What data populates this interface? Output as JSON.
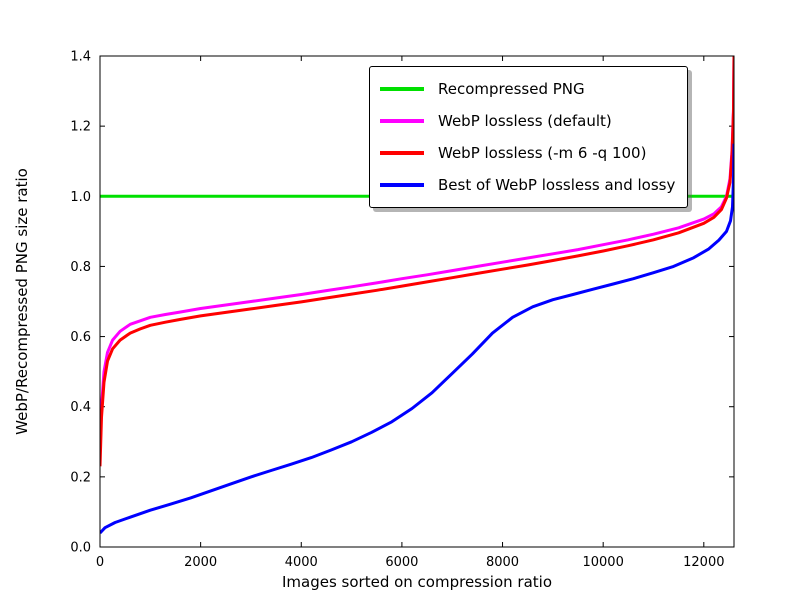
{
  "figure": {
    "background": "#ffffff",
    "axes_edge_color": "#000000"
  },
  "chart_data": {
    "type": "line",
    "title": "",
    "xlabel": "Images sorted on compression ratio",
    "ylabel": "WebP/Recompressed PNG size ratio",
    "xlim": [
      0,
      12600
    ],
    "ylim": [
      0.0,
      1.4
    ],
    "grid": false,
    "legend_position": "upper center",
    "xtick_values": [
      0,
      2000,
      4000,
      6000,
      8000,
      10000,
      12000
    ],
    "xtick_labels": [
      "0",
      "2000",
      "4000",
      "6000",
      "8000",
      "10000",
      "12000"
    ],
    "ytick_values": [
      0.0,
      0.2,
      0.4,
      0.6,
      0.8,
      1.0,
      1.2,
      1.4
    ],
    "ytick_labels": [
      "0.0",
      "0.2",
      "0.4",
      "0.6",
      "0.8",
      "1.0",
      "1.2",
      "1.4"
    ],
    "series": [
      {
        "name": "Recompressed PNG",
        "color": "#00e000",
        "points": [
          [
            0,
            1.0
          ],
          [
            12600,
            1.0
          ]
        ]
      },
      {
        "name": "WebP lossless (default)",
        "color": "#ff00ff",
        "points": [
          [
            0,
            0.27
          ],
          [
            30,
            0.4
          ],
          [
            80,
            0.5
          ],
          [
            150,
            0.555
          ],
          [
            250,
            0.59
          ],
          [
            400,
            0.615
          ],
          [
            600,
            0.635
          ],
          [
            800,
            0.645
          ],
          [
            1000,
            0.655
          ],
          [
            1300,
            0.663
          ],
          [
            1600,
            0.67
          ],
          [
            2000,
            0.68
          ],
          [
            2500,
            0.69
          ],
          [
            3000,
            0.7
          ],
          [
            3500,
            0.71
          ],
          [
            4000,
            0.72
          ],
          [
            4500,
            0.731
          ],
          [
            5000,
            0.742
          ],
          [
            5500,
            0.753
          ],
          [
            6000,
            0.765
          ],
          [
            6500,
            0.776
          ],
          [
            7000,
            0.788
          ],
          [
            7500,
            0.8
          ],
          [
            8000,
            0.812
          ],
          [
            8500,
            0.824
          ],
          [
            9000,
            0.836
          ],
          [
            9500,
            0.848
          ],
          [
            10000,
            0.862
          ],
          [
            10500,
            0.876
          ],
          [
            11000,
            0.892
          ],
          [
            11500,
            0.91
          ],
          [
            12000,
            0.935
          ],
          [
            12200,
            0.95
          ],
          [
            12350,
            0.97
          ],
          [
            12450,
            1.0
          ],
          [
            12520,
            1.05
          ],
          [
            12560,
            1.13
          ],
          [
            12590,
            1.25
          ],
          [
            12600,
            1.4
          ]
        ]
      },
      {
        "name": "WebP lossless (-m 6 -q 100)",
        "color": "#ff0000",
        "points": [
          [
            0,
            0.23
          ],
          [
            30,
            0.37
          ],
          [
            80,
            0.47
          ],
          [
            150,
            0.53
          ],
          [
            250,
            0.565
          ],
          [
            400,
            0.59
          ],
          [
            600,
            0.61
          ],
          [
            800,
            0.622
          ],
          [
            1000,
            0.632
          ],
          [
            1300,
            0.641
          ],
          [
            1600,
            0.649
          ],
          [
            2000,
            0.659
          ],
          [
            2500,
            0.669
          ],
          [
            3000,
            0.679
          ],
          [
            3500,
            0.689
          ],
          [
            4000,
            0.699
          ],
          [
            4500,
            0.71
          ],
          [
            5000,
            0.721
          ],
          [
            5500,
            0.732
          ],
          [
            6000,
            0.744
          ],
          [
            6500,
            0.756
          ],
          [
            7000,
            0.768
          ],
          [
            7500,
            0.78
          ],
          [
            8000,
            0.792
          ],
          [
            8500,
            0.804
          ],
          [
            9000,
            0.817
          ],
          [
            9500,
            0.83
          ],
          [
            10000,
            0.844
          ],
          [
            10500,
            0.859
          ],
          [
            11000,
            0.876
          ],
          [
            11500,
            0.896
          ],
          [
            12000,
            0.923
          ],
          [
            12200,
            0.94
          ],
          [
            12350,
            0.962
          ],
          [
            12450,
            0.995
          ],
          [
            12520,
            1.04
          ],
          [
            12560,
            1.12
          ],
          [
            12590,
            1.24
          ],
          [
            12600,
            1.4
          ]
        ]
      },
      {
        "name": "Best of WebP lossless and lossy",
        "color": "#0000ff",
        "points": [
          [
            0,
            0.04
          ],
          [
            100,
            0.055
          ],
          [
            300,
            0.07
          ],
          [
            600,
            0.085
          ],
          [
            1000,
            0.105
          ],
          [
            1400,
            0.122
          ],
          [
            1800,
            0.14
          ],
          [
            2200,
            0.16
          ],
          [
            2600,
            0.18
          ],
          [
            3000,
            0.2
          ],
          [
            3400,
            0.218
          ],
          [
            3800,
            0.236
          ],
          [
            4200,
            0.255
          ],
          [
            4600,
            0.277
          ],
          [
            5000,
            0.3
          ],
          [
            5400,
            0.327
          ],
          [
            5800,
            0.357
          ],
          [
            6200,
            0.395
          ],
          [
            6600,
            0.44
          ],
          [
            7000,
            0.495
          ],
          [
            7400,
            0.55
          ],
          [
            7800,
            0.61
          ],
          [
            8200,
            0.655
          ],
          [
            8600,
            0.685
          ],
          [
            9000,
            0.705
          ],
          [
            9400,
            0.72
          ],
          [
            9800,
            0.735
          ],
          [
            10200,
            0.75
          ],
          [
            10600,
            0.765
          ],
          [
            11000,
            0.782
          ],
          [
            11400,
            0.8
          ],
          [
            11800,
            0.825
          ],
          [
            12100,
            0.85
          ],
          [
            12300,
            0.875
          ],
          [
            12450,
            0.9
          ],
          [
            12530,
            0.93
          ],
          [
            12570,
            0.97
          ],
          [
            12590,
            1.05
          ],
          [
            12600,
            1.15
          ]
        ]
      }
    ]
  }
}
